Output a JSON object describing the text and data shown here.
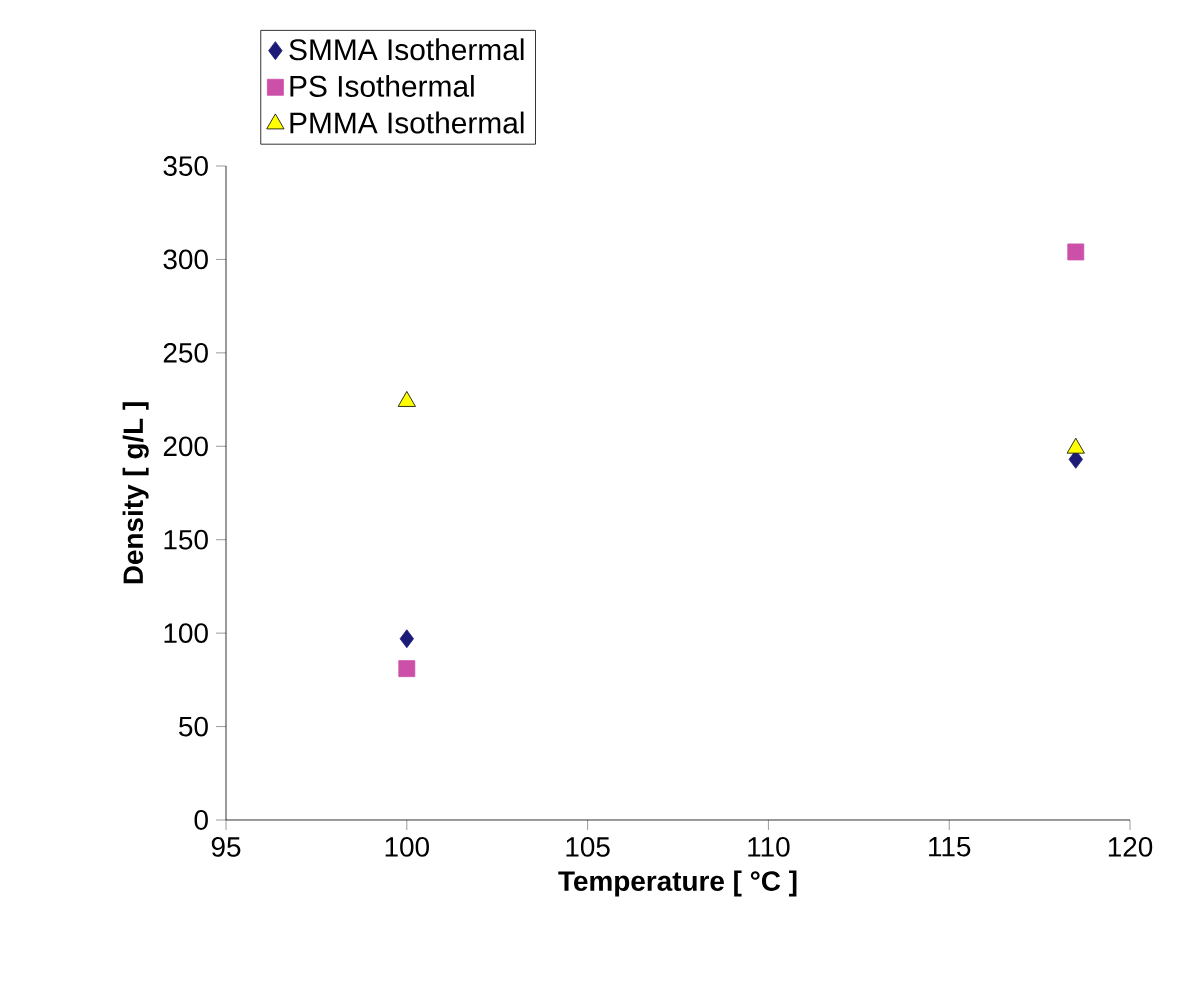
{
  "chart_data": {
    "type": "scatter",
    "xlabel": "Temperature  [ °C ]",
    "ylabel": "Density [ g/L ]",
    "xlim": [
      95,
      120
    ],
    "xticks": [
      95,
      100,
      105,
      110,
      115,
      120
    ],
    "ylim": [
      0,
      350
    ],
    "yticks": [
      0,
      50,
      100,
      150,
      200,
      250,
      300,
      350
    ],
    "grid": false,
    "legend": "top left",
    "x": [
      100,
      118.5
    ],
    "series": [
      {
        "name": "SMMA Isothermal",
        "color": "#1c1c78",
        "marker": "diamond",
        "values": [
          97,
          193
        ]
      },
      {
        "name": "PS Isothermal",
        "color": "#cc4fa8",
        "marker": "square",
        "values": [
          81,
          304
        ]
      },
      {
        "name": "PMMA Isothermal",
        "color": "#ffff00",
        "marker": "triangle",
        "values": [
          224,
          199
        ]
      }
    ]
  }
}
